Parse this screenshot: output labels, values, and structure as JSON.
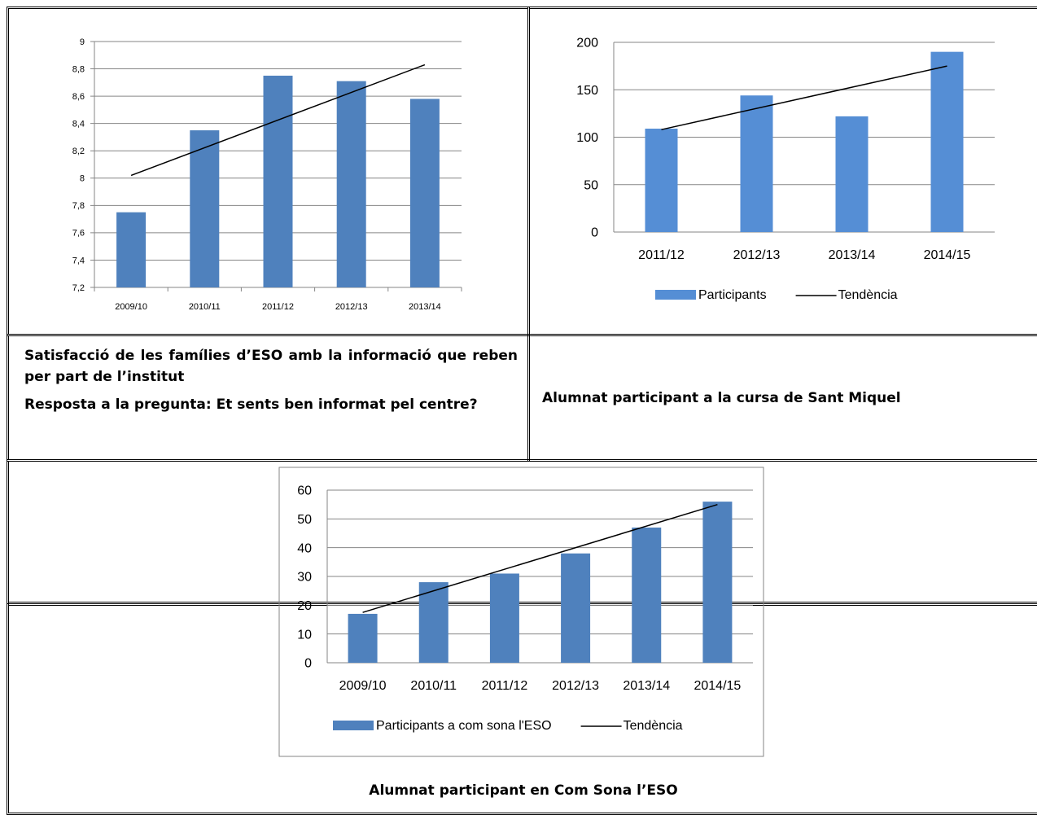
{
  "captions": {
    "chart1_line1": "Satisfacció de les famílies d’ESO amb la informació que reben per part de l’institut",
    "chart1_line2": "Resposta a la pregunta: Et sents ben informat pel centre?",
    "chart2": "Alumnat participant a la cursa de Sant Miquel",
    "chart3": "Alumnat participant en Com Sona l’ESO"
  },
  "colors": {
    "bar_dark": "#4f81bd",
    "bar_light": "#558ed5",
    "grid": "#868686",
    "trend": "#000000"
  },
  "chart_data": [
    {
      "type": "bar",
      "title": "",
      "categories": [
        "2009/10",
        "2010/11",
        "2011/12",
        "2012/13",
        "2013/14"
      ],
      "series": [
        {
          "values": [
            7.75,
            8.35,
            8.75,
            8.71,
            8.58
          ]
        }
      ],
      "ylim": [
        7.2,
        9
      ],
      "yticks": [
        "7,2",
        "7,4",
        "7,6",
        "7,8",
        "8",
        "8,2",
        "8,4",
        "8,6",
        "8,8",
        "9"
      ],
      "trendline": [
        8.02,
        8.83
      ],
      "grid": true,
      "legend": "none"
    },
    {
      "type": "bar",
      "title": "",
      "categories": [
        "2011/12",
        "2012/13",
        "2013/14",
        "2014/15"
      ],
      "series": [
        {
          "name": "Participants",
          "values": [
            109,
            144,
            122,
            190
          ]
        }
      ],
      "ylim": [
        0,
        200
      ],
      "yticks": [
        "0",
        "50",
        "100",
        "150",
        "200"
      ],
      "trendline": [
        108,
        175
      ],
      "trend_name": "Tendència",
      "grid": true,
      "legend": "bottom"
    },
    {
      "type": "bar",
      "title": "",
      "categories": [
        "2009/10",
        "2010/11",
        "2011/12",
        "2012/13",
        "2013/14",
        "2014/15"
      ],
      "series": [
        {
          "name": "Participants a com sona l'ESO",
          "values": [
            17,
            28,
            31,
            38,
            47,
            56
          ]
        }
      ],
      "ylim": [
        0,
        60
      ],
      "yticks": [
        "0",
        "10",
        "20",
        "30",
        "40",
        "50",
        "60"
      ],
      "trendline": [
        17.5,
        55
      ],
      "trend_name": "Tendència",
      "grid": true,
      "legend": "bottom"
    }
  ]
}
